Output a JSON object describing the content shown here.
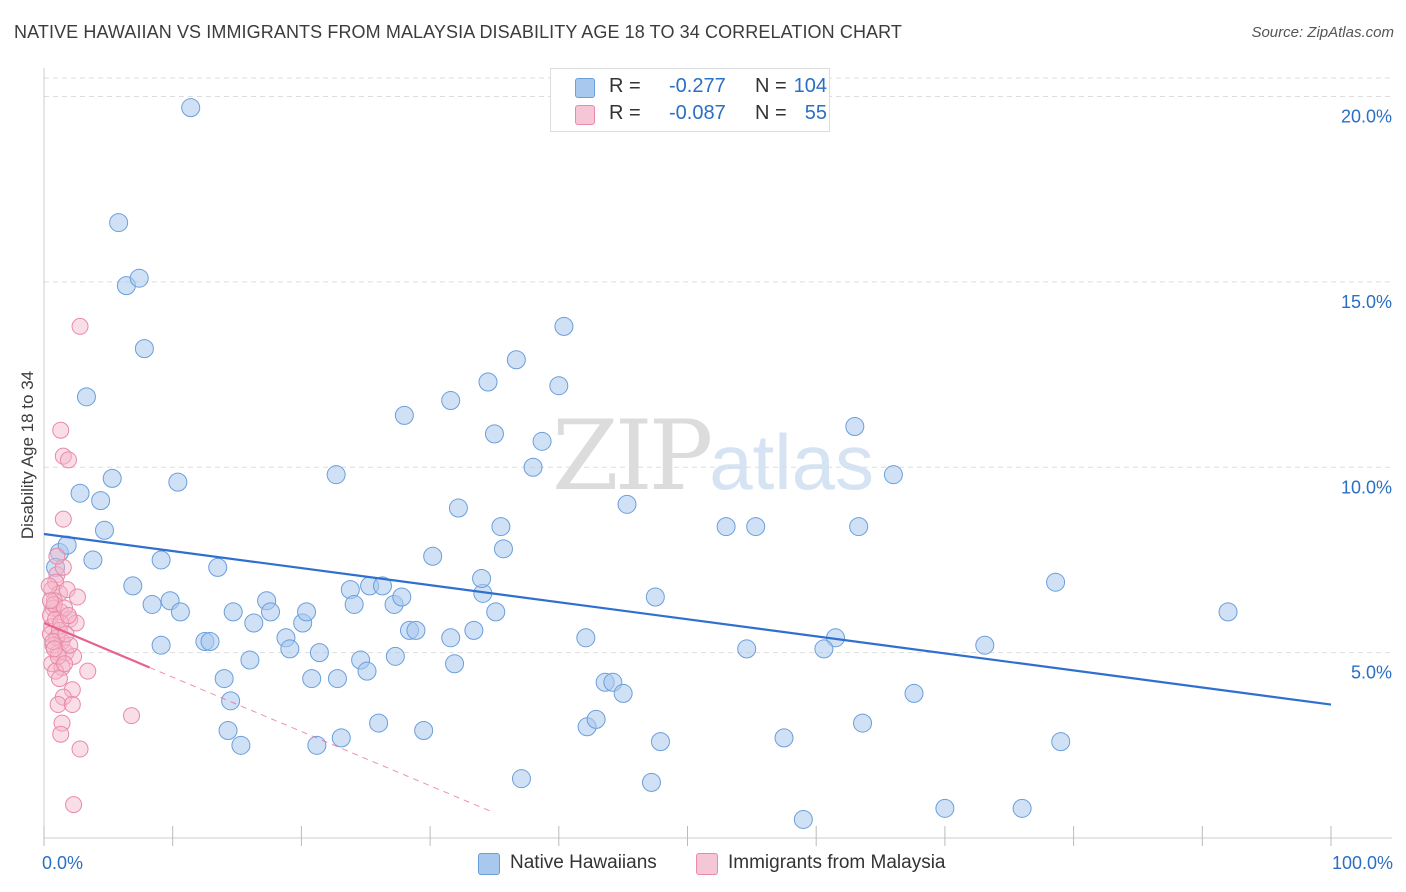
{
  "header": {
    "title": "NATIVE HAWAIIAN VS IMMIGRANTS FROM MALAYSIA DISABILITY AGE 18 TO 34 CORRELATION CHART",
    "source": "Source: ZipAtlas.com"
  },
  "watermark": {
    "zip": "ZIP",
    "atlas": "atlas"
  },
  "legend": {
    "series1": {
      "r_label": "R =",
      "r_value": "-0.277",
      "n_label": "N =",
      "n_value": "104"
    },
    "series2": {
      "r_label": "R =",
      "r_value": "-0.087",
      "n_label": "N =",
      "n_value": "55"
    },
    "bottom": [
      "Native Hawaiians",
      "Immigrants from Malaysia"
    ]
  },
  "colors": {
    "blue_fill": "#a9c8ee",
    "blue_stroke": "#6a9fdc",
    "blue_line": "#2f6fcf",
    "pink_fill": "#f5b5c9",
    "pink_stroke": "#e98aa8",
    "pink_line": "#e8628f",
    "grid": "#dddddd",
    "tick_text": "#2a6fc4"
  },
  "chart_data": {
    "type": "scatter",
    "title": "NATIVE HAWAIIAN VS IMMIGRANTS FROM MALAYSIA DISABILITY AGE 18 TO 34 CORRELATION CHART",
    "xlabel": "",
    "ylabel": "Disability Age 18 to 34",
    "xlim": [
      0,
      100
    ],
    "ylim": [
      0,
      20.5
    ],
    "x_tick_labels": [
      "0.0%",
      "100.0%"
    ],
    "y_ticks": [
      5,
      10,
      15,
      20
    ],
    "y_tick_labels": [
      "5.0%",
      "10.0%",
      "15.0%",
      "20.0%"
    ],
    "grid": true,
    "series": [
      {
        "name": "Native Hawaiians",
        "trend": {
          "x": [
            0,
            100
          ],
          "y": [
            8.2,
            3.6
          ],
          "style": "solid"
        },
        "points": [
          [
            11.4,
            19.7
          ],
          [
            5.8,
            16.6
          ],
          [
            6.4,
            14.9
          ],
          [
            7.4,
            15.1
          ],
          [
            7.8,
            13.2
          ],
          [
            3.3,
            11.9
          ],
          [
            2.8,
            9.3
          ],
          [
            4.4,
            9.1
          ],
          [
            5.3,
            9.7
          ],
          [
            10.4,
            9.6
          ],
          [
            4.7,
            8.3
          ],
          [
            1.2,
            7.7
          ],
          [
            1.8,
            7.9
          ],
          [
            3.8,
            7.5
          ],
          [
            0.9,
            7.3
          ],
          [
            9.1,
            7.5
          ],
          [
            13.5,
            7.3
          ],
          [
            6.9,
            6.8
          ],
          [
            8.4,
            6.3
          ],
          [
            9.8,
            6.4
          ],
          [
            10.6,
            6.1
          ],
          [
            9.1,
            5.2
          ],
          [
            12.5,
            5.3
          ],
          [
            12.9,
            5.3
          ],
          [
            14.7,
            6.1
          ],
          [
            17.3,
            6.4
          ],
          [
            16.3,
            5.8
          ],
          [
            17.6,
            6.1
          ],
          [
            18.8,
            5.4
          ],
          [
            19.1,
            5.1
          ],
          [
            20.1,
            5.8
          ],
          [
            20.4,
            6.1
          ],
          [
            21.4,
            5.0
          ],
          [
            22.8,
            4.3
          ],
          [
            20.8,
            4.3
          ],
          [
            21.2,
            2.5
          ],
          [
            23.1,
            2.7
          ],
          [
            16.0,
            4.8
          ],
          [
            14.0,
            4.3
          ],
          [
            14.5,
            3.7
          ],
          [
            14.3,
            2.9
          ],
          [
            15.3,
            2.5
          ],
          [
            23.8,
            6.7
          ],
          [
            24.1,
            6.3
          ],
          [
            24.6,
            4.8
          ],
          [
            25.1,
            4.5
          ],
          [
            25.3,
            6.8
          ],
          [
            26.3,
            6.8
          ],
          [
            26.0,
            3.1
          ],
          [
            27.2,
            6.3
          ],
          [
            27.8,
            6.5
          ],
          [
            27.3,
            4.9
          ],
          [
            28.4,
            5.6
          ],
          [
            28.9,
            5.6
          ],
          [
            29.5,
            2.9
          ],
          [
            30.2,
            7.6
          ],
          [
            31.6,
            5.4
          ],
          [
            31.9,
            4.7
          ],
          [
            31.6,
            11.8
          ],
          [
            32.2,
            8.9
          ],
          [
            33.4,
            5.6
          ],
          [
            34.1,
            6.6
          ],
          [
            35.5,
            8.4
          ],
          [
            35.1,
            6.1
          ],
          [
            34.5,
            12.3
          ],
          [
            35.0,
            10.9
          ],
          [
            34.0,
            7.0
          ],
          [
            35.7,
            7.8
          ],
          [
            36.7,
            12.9
          ],
          [
            38.0,
            10.0
          ],
          [
            38.7,
            10.7
          ],
          [
            40.4,
            13.8
          ],
          [
            40.0,
            12.2
          ],
          [
            28.0,
            11.4
          ],
          [
            22.7,
            9.8
          ],
          [
            42.1,
            5.4
          ],
          [
            42.2,
            3.0
          ],
          [
            42.9,
            3.2
          ],
          [
            43.6,
            4.2
          ],
          [
            44.2,
            4.2
          ],
          [
            45.0,
            3.9
          ],
          [
            45.3,
            9.0
          ],
          [
            47.5,
            6.5
          ],
          [
            47.9,
            2.6
          ],
          [
            47.2,
            1.5
          ],
          [
            53.0,
            8.4
          ],
          [
            54.6,
            5.1
          ],
          [
            55.3,
            8.4
          ],
          [
            57.5,
            2.7
          ],
          [
            59.0,
            0.5
          ],
          [
            61.5,
            5.4
          ],
          [
            63.0,
            11.1
          ],
          [
            63.3,
            8.4
          ],
          [
            63.6,
            3.1
          ],
          [
            66.0,
            9.8
          ],
          [
            67.6,
            3.9
          ],
          [
            70.0,
            0.8
          ],
          [
            73.1,
            5.2
          ],
          [
            76.0,
            0.8
          ],
          [
            78.6,
            6.9
          ],
          [
            79.0,
            2.6
          ],
          [
            92.0,
            6.1
          ],
          [
            60.6,
            5.1
          ],
          [
            37.1,
            1.6
          ]
        ]
      },
      {
        "name": "Immigrants from Malaysia",
        "trend": {
          "x": [
            0,
            8.2
          ],
          "y": [
            5.8,
            4.6
          ],
          "style": "solid",
          "dashed_extension_x": [
            8.2,
            35
          ]
        },
        "points": [
          [
            1.0,
            7.1
          ],
          [
            1.5,
            7.3
          ],
          [
            0.9,
            6.9
          ],
          [
            0.6,
            6.7
          ],
          [
            1.2,
            6.6
          ],
          [
            0.8,
            6.4
          ],
          [
            1.8,
            6.7
          ],
          [
            2.6,
            6.5
          ],
          [
            0.7,
            6.2
          ],
          [
            1.3,
            6.1
          ],
          [
            0.5,
            6.0
          ],
          [
            2.0,
            5.9
          ],
          [
            0.6,
            5.7
          ],
          [
            0.5,
            5.5
          ],
          [
            1.0,
            5.4
          ],
          [
            1.4,
            5.3
          ],
          [
            0.7,
            5.2
          ],
          [
            1.1,
            5.0
          ],
          [
            1.7,
            5.0
          ],
          [
            2.3,
            4.9
          ],
          [
            0.6,
            4.7
          ],
          [
            1.4,
            4.6
          ],
          [
            0.9,
            4.5
          ],
          [
            3.4,
            4.5
          ],
          [
            1.2,
            4.3
          ],
          [
            2.2,
            4.0
          ],
          [
            1.5,
            3.8
          ],
          [
            1.1,
            3.6
          ],
          [
            2.2,
            3.6
          ],
          [
            1.4,
            3.1
          ],
          [
            1.3,
            2.8
          ],
          [
            2.8,
            2.4
          ],
          [
            6.8,
            3.3
          ],
          [
            2.3,
            0.9
          ],
          [
            2.8,
            13.8
          ],
          [
            1.3,
            11.0
          ],
          [
            1.5,
            10.3
          ],
          [
            1.9,
            10.2
          ],
          [
            1.5,
            8.6
          ],
          [
            1.0,
            7.6
          ],
          [
            0.4,
            6.8
          ],
          [
            0.8,
            6.3
          ],
          [
            1.6,
            6.2
          ],
          [
            2.5,
            5.8
          ],
          [
            0.9,
            5.9
          ],
          [
            1.2,
            5.6
          ],
          [
            0.7,
            5.3
          ],
          [
            2.0,
            5.2
          ],
          [
            1.1,
            4.9
          ],
          [
            1.6,
            4.7
          ],
          [
            0.8,
            5.1
          ],
          [
            1.3,
            5.8
          ],
          [
            1.9,
            6.0
          ],
          [
            0.5,
            6.4
          ],
          [
            1.7,
            5.5
          ]
        ]
      }
    ]
  }
}
